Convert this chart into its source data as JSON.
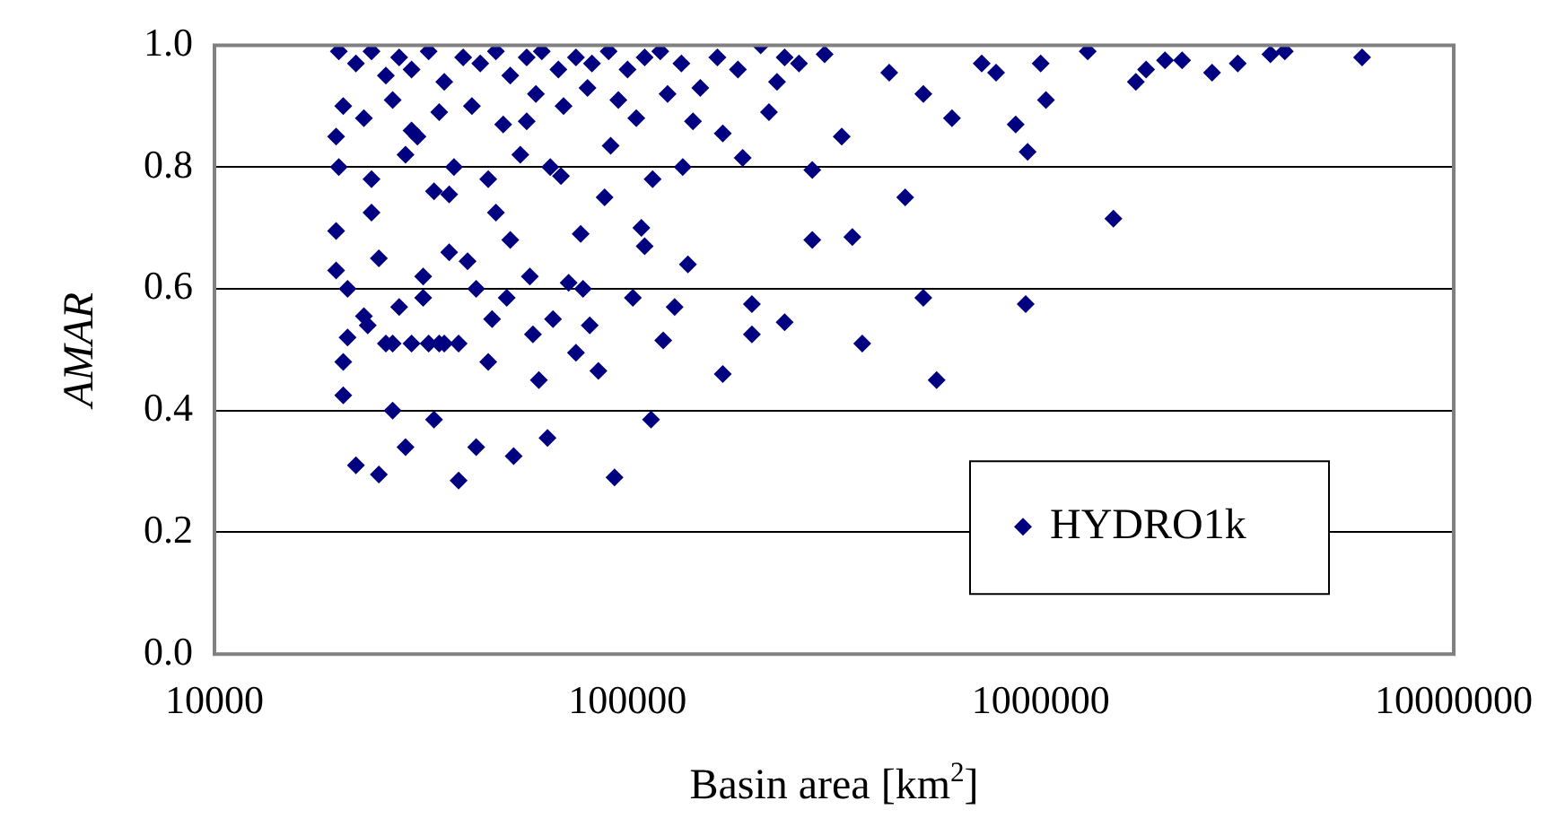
{
  "chart_data": {
    "type": "scatter",
    "xlabel": "Basin area [km$^{2}$]",
    "ylabel": "AMAR",
    "log": "x",
    "grid": "y",
    "legend": "bottom right",
    "marker": "diamond",
    "xlim": [
      10000,
      10000000
    ],
    "xticks": [
      10000,
      100000,
      1000000,
      10000000
    ],
    "ylim": [
      0,
      1
    ],
    "yticks": [
      {
        "value": 0,
        "label": "0.0"
      },
      {
        "value": 0.2,
        "label": "0.2"
      },
      {
        "value": 0.4,
        "label": "0.4"
      },
      {
        "value": 0.6,
        "label": "0.6"
      },
      {
        "value": 0.8,
        "label": "0.8"
      },
      {
        "value": 1,
        "label": "1.0"
      }
    ],
    "series": [
      {
        "name": "HYDRO1k",
        "color": "#000080",
        "x": [
          6000000,
          3900000,
          3600000,
          3000000,
          2600000,
          2200000,
          2000000,
          1800000,
          1700000,
          1500000,
          1300000,
          1030000,
          1000000,
          920000,
          930000,
          870000,
          780000,
          720000,
          610000,
          560000,
          520000,
          520000,
          470000,
          430000,
          370000,
          350000,
          330000,
          300000,
          280000,
          280000,
          260000,
          240000,
          230000,
          220000,
          200000,
          200000,
          190000,
          170000,
          170000,
          144000,
          140000,
          136000,
          130000,
          122000,
          114000,
          110000,
          103000,
          93000,
          91000,
          85000,
          81000,
          77000,
          75000,
          69000,
          64000,
          61000,
          59000,
          57000,
          53000,
          51000,
          48000,
          46000,
          43000,
          41000,
          39000,
          37000,
          35000,
          34000,
          32000,
          30000,
          29000,
          27000,
          26000,
          25000,
          24000,
          23000,
          22000,
          20500,
          19700,
          19700,
          19700,
          20000,
          22000,
          24000,
          26000,
          28000,
          30000,
          33000,
          36000,
          40000,
          44000,
          48000,
          52000,
          57000,
          62000,
          68000,
          75000,
          82000,
          90000,
          100000,
          110000,
          120000,
          135000,
          150000,
          165000,
          185000,
          210000,
          240000,
          20500,
          23000,
          27000,
          31000,
          35000,
          42000,
          50000,
          60000,
          70000,
          80000,
          95000,
          105000,
          125000,
          20000,
          24000,
          29000,
          34000,
          38000,
          46000,
          55000,
          65000,
          88000,
          115000,
          21000,
          25000,
          28000,
          32000,
          37000,
          43000,
          52000,
          58000,
          72000,
          78000,
          108000,
          21000,
          23500,
          27000,
          30000,
          33000,
          36000,
          39000,
          47000,
          66000,
          20500
        ],
        "values": [
          0.98,
          0.99,
          0.985,
          0.97,
          0.955,
          0.975,
          0.975,
          0.96,
          0.94,
          0.715,
          0.99,
          0.91,
          0.97,
          0.575,
          0.825,
          0.87,
          0.955,
          0.97,
          0.88,
          0.45,
          0.585,
          0.92,
          0.75,
          0.955,
          0.51,
          0.685,
          0.85,
          0.985,
          0.68,
          0.795,
          0.97,
          0.545,
          0.94,
          0.89,
          0.525,
          0.575,
          0.815,
          0.855,
          0.46,
          0.875,
          0.64,
          0.8,
          0.57,
          0.515,
          0.385,
          0.67,
          0.585,
          0.29,
          0.835,
          0.465,
          0.54,
          0.69,
          0.495,
          0.785,
          0.355,
          0.45,
          0.525,
          0.875,
          0.325,
          0.585,
          0.725,
          0.48,
          0.34,
          0.645,
          0.285,
          0.755,
          0.51,
          0.385,
          0.585,
          0.86,
          0.34,
          0.4,
          0.51,
          0.295,
          0.725,
          0.555,
          0.31,
          0.425,
          0.695,
          0.85,
          0.63,
          0.99,
          0.97,
          0.99,
          0.95,
          0.98,
          0.96,
          0.99,
          0.94,
          0.98,
          0.97,
          0.99,
          0.95,
          0.98,
          0.99,
          0.96,
          0.98,
          0.97,
          0.99,
          0.96,
          0.98,
          0.99,
          0.97,
          0.93,
          0.98,
          0.96,
          1.0,
          0.98,
          0.9,
          0.88,
          0.91,
          0.85,
          0.89,
          0.9,
          0.87,
          0.92,
          0.9,
          0.93,
          0.91,
          0.88,
          0.92,
          0.8,
          0.78,
          0.82,
          0.76,
          0.8,
          0.78,
          0.82,
          0.8,
          0.75,
          0.78,
          0.6,
          0.65,
          0.57,
          0.62,
          0.66,
          0.6,
          0.68,
          0.62,
          0.61,
          0.6,
          0.7,
          0.52,
          0.54,
          0.51,
          0.51,
          0.51,
          0.51,
          0.51,
          0.55,
          0.55,
          0.48
        ]
      }
    ]
  }
}
